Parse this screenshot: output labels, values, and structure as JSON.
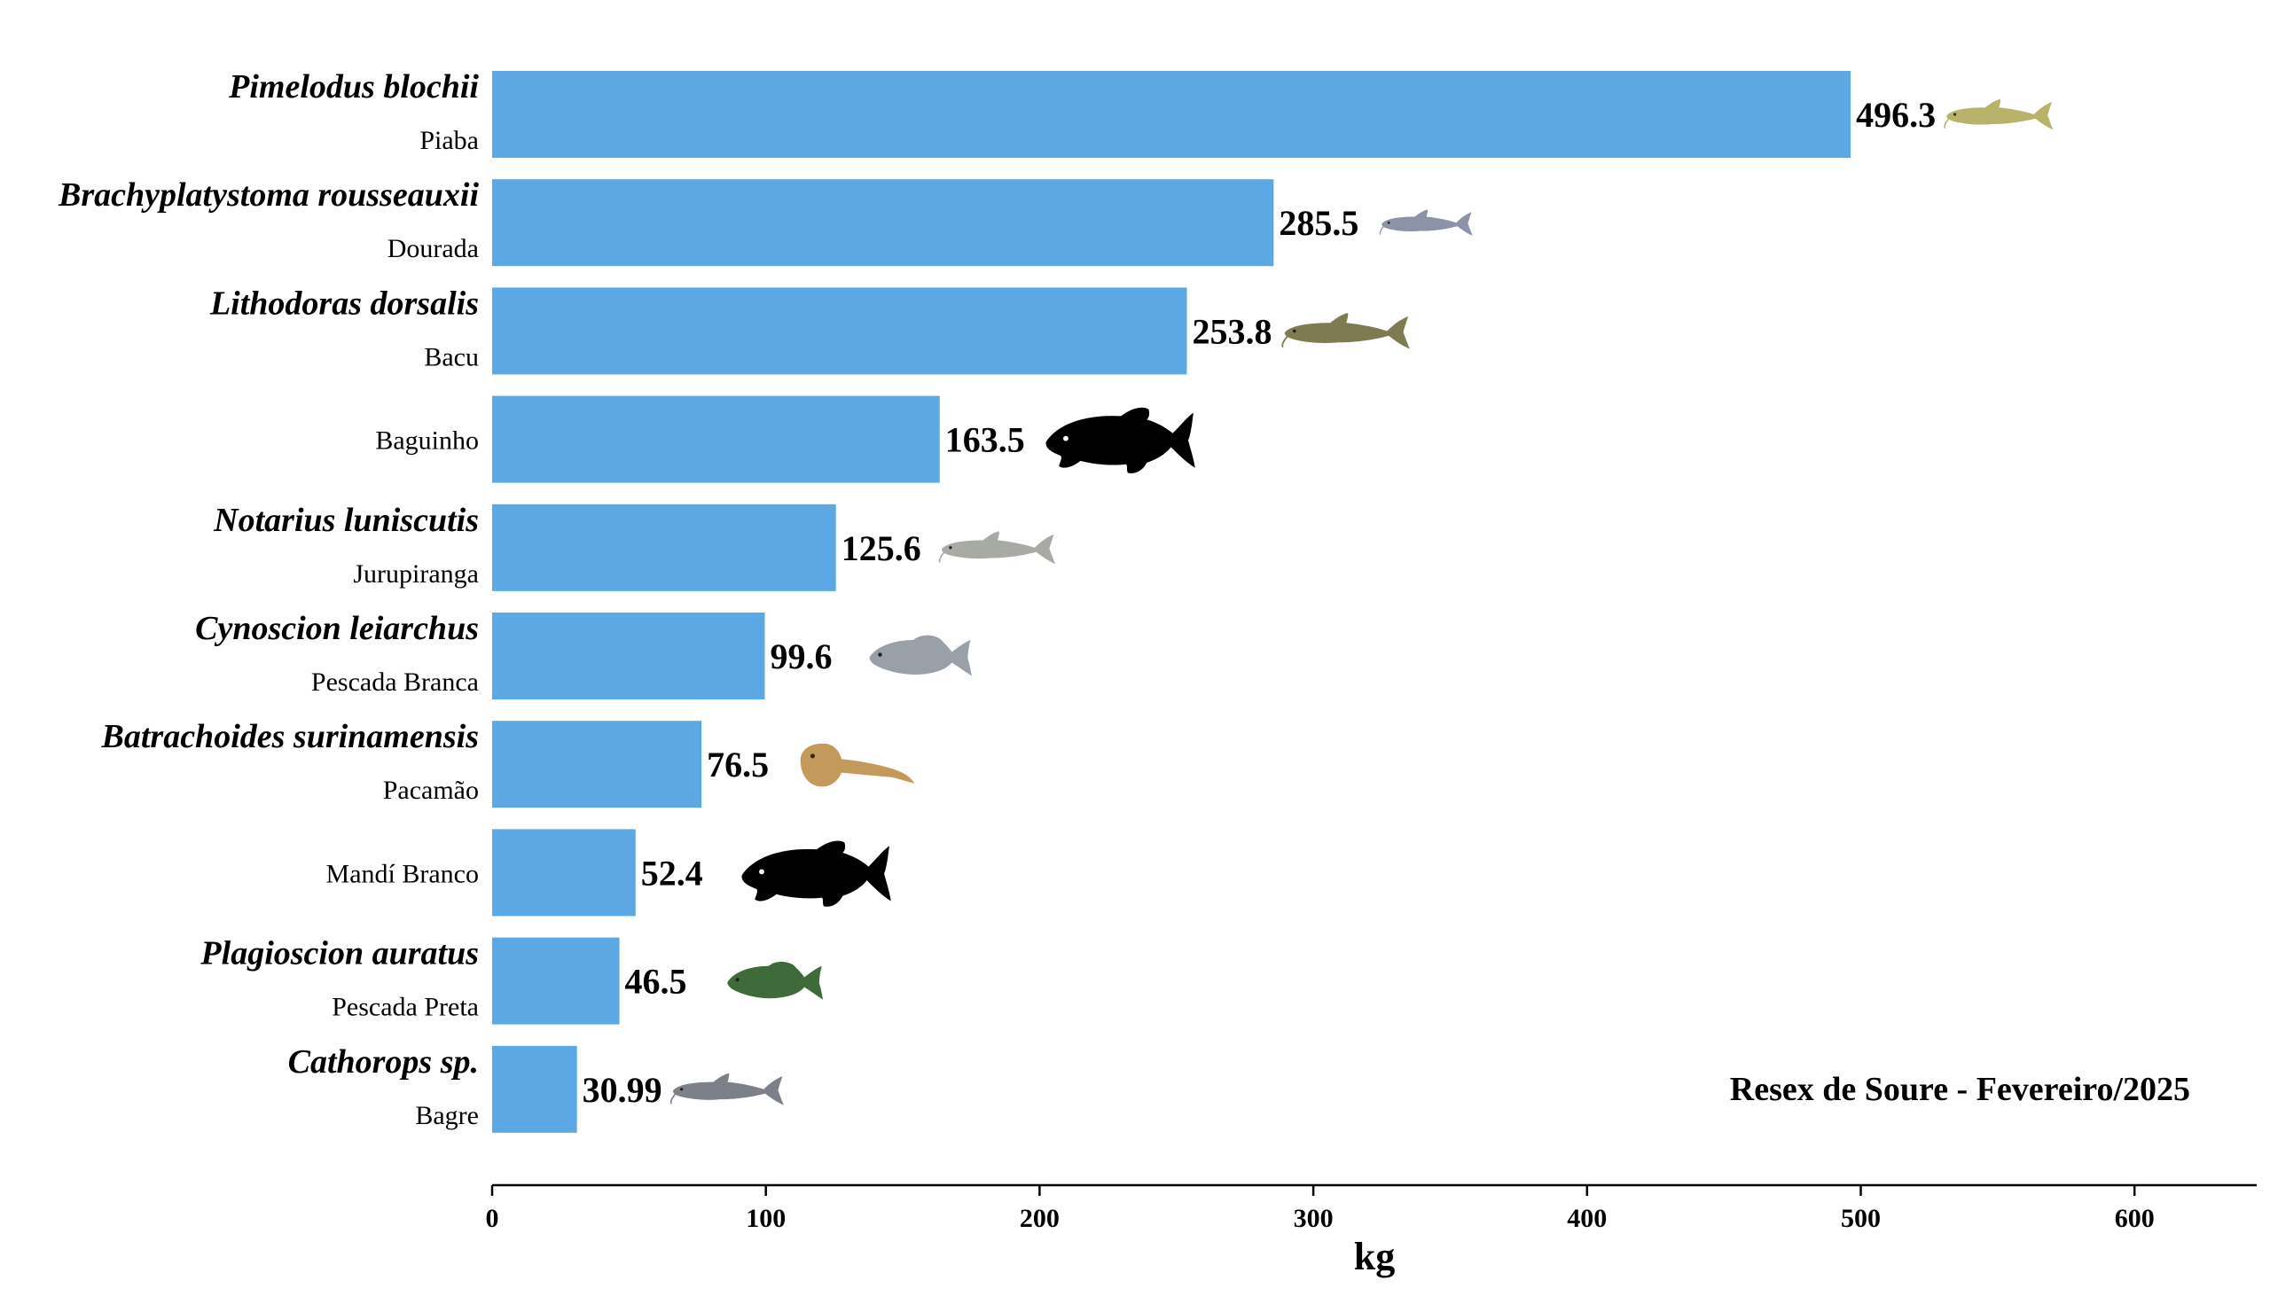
{
  "chart_data": {
    "type": "bar",
    "orientation": "horizontal",
    "xlabel": "kg",
    "xlim": [
      0,
      650
    ],
    "xticks": [
      0,
      100,
      200,
      300,
      400,
      500,
      600
    ],
    "annotation": "Resex de Soure - Fevereiro/2025",
    "bar_color": "#5ba8e5",
    "categories": [
      {
        "scientific": "Pimelodus blochii",
        "common": "Piaba",
        "value": 496.3,
        "value_label": "496.3",
        "icon": "catfish-photo-yellow"
      },
      {
        "scientific": "Brachyplatystoma rousseauxii",
        "common": "Dourada",
        "value": 285.5,
        "value_label": "285.5",
        "icon": "catfish-photo-gray"
      },
      {
        "scientific": "Lithodoras dorsalis",
        "common": "Bacu",
        "value": 253.8,
        "value_label": "253.8",
        "icon": "armored-catfish-photo"
      },
      {
        "scientific": "",
        "common": "Baguinho",
        "value": 163.5,
        "value_label": "163.5",
        "icon": "fish-silhouette-icon"
      },
      {
        "scientific": "Notarius luniscutis",
        "common": "Jurupiranga",
        "value": 125.6,
        "value_label": "125.6",
        "icon": "catfish-photo-silver"
      },
      {
        "scientific": "Cynoscion leiarchus",
        "common": "Pescada Branca",
        "value": 99.6,
        "value_label": "99.6",
        "icon": "weakfish-photo"
      },
      {
        "scientific": "Batrachoides surinamensis",
        "common": "Pacamão",
        "value": 76.5,
        "value_label": "76.5",
        "icon": "toadfish-photo"
      },
      {
        "scientific": "",
        "common": "Mandí Branco",
        "value": 52.4,
        "value_label": "52.4",
        "icon": "fish-silhouette-icon"
      },
      {
        "scientific": "Plagioscion auratus",
        "common": "Pescada Preta",
        "value": 46.5,
        "value_label": "46.5",
        "icon": "croaker-photo-green"
      },
      {
        "scientific": "Cathorops sp.",
        "common": "Bagre",
        "value": 30.99,
        "value_label": "30.99",
        "icon": "catfish-photo-small"
      }
    ]
  }
}
